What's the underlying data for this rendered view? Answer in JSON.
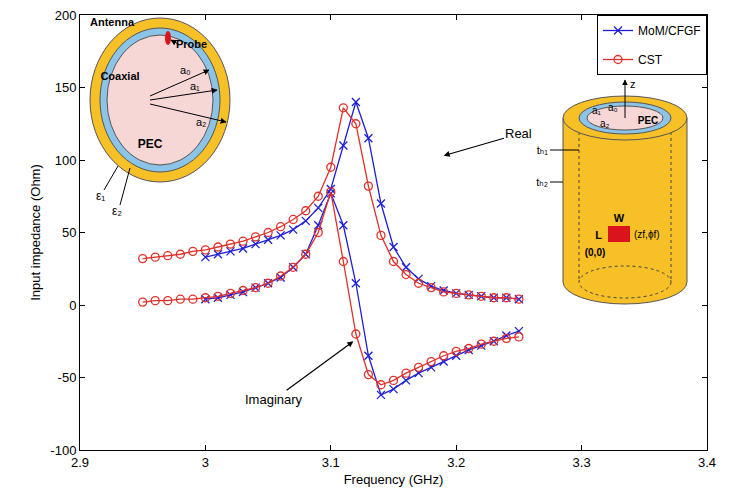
{
  "chart_data": {
    "type": "line",
    "x_label": "Frequency (GHz)",
    "y_label": "Input impedance (Ohm)",
    "xlim": [
      2.9,
      3.4
    ],
    "xticks": [
      2.9,
      3,
      3.1,
      3.2,
      3.3,
      3.4
    ],
    "ylim": [
      -100,
      200
    ],
    "yticks": [
      -100,
      -50,
      0,
      50,
      100,
      150,
      200
    ],
    "grid": false,
    "legend": "upper right",
    "series": [
      {
        "name": "MoM/CFGF",
        "color": "#1f1fd6",
        "marker": "x",
        "x": [
          3,
          3.01,
          3.02,
          3.03,
          3.04,
          3.05,
          3.06,
          3.07,
          3.08,
          3.09,
          3.1,
          3.11,
          3.12,
          3.13,
          3.14,
          3.15,
          3.16,
          3.17,
          3.18,
          3.19,
          3.2,
          3.21,
          3.22,
          3.23,
          3.24,
          3.25
        ],
        "real": [
          33,
          35,
          37,
          39,
          42,
          45,
          48,
          52,
          58,
          67,
          80,
          110,
          140,
          115,
          70,
          40,
          26,
          18,
          13,
          10,
          8,
          7,
          6,
          5,
          5,
          4
        ],
        "imaginary": [
          4,
          5,
          7,
          9,
          12,
          15,
          19,
          26,
          35,
          55,
          77,
          55,
          15,
          -35,
          -62,
          -58,
          -52,
          -47,
          -43,
          -39,
          -35,
          -31,
          -28,
          -25,
          -21,
          -18
        ]
      },
      {
        "name": "CST",
        "color": "#e0302a",
        "marker": "circle",
        "x": [
          2.95,
          2.96,
          2.97,
          2.98,
          2.99,
          3,
          3.01,
          3.02,
          3.03,
          3.04,
          3.05,
          3.06,
          3.07,
          3.08,
          3.09,
          3.1,
          3.11,
          3.12,
          3.13,
          3.14,
          3.15,
          3.16,
          3.17,
          3.18,
          3.19,
          3.2,
          3.21,
          3.22,
          3.23,
          3.24,
          3.25
        ],
        "real": [
          32,
          33,
          34,
          35,
          37,
          38,
          40,
          42,
          44,
          47,
          50,
          54,
          59,
          65,
          75,
          95,
          136,
          125,
          82,
          48,
          30,
          21,
          15,
          12,
          9,
          8,
          7,
          6,
          5,
          5,
          4
        ],
        "imaginary": [
          2,
          3,
          3,
          4,
          4,
          5,
          6,
          8,
          10,
          12,
          15,
          20,
          26,
          35,
          50,
          78,
          30,
          -20,
          -48,
          -55,
          -52,
          -47,
          -43,
          -39,
          -35,
          -32,
          -30,
          -27,
          -25,
          -23,
          -22
        ]
      }
    ],
    "annotations": [
      {
        "text": "Real"
      },
      {
        "text": "Imaginary"
      }
    ]
  },
  "insets": {
    "cross_section": {
      "antenna": "Antenna",
      "probe": "Probe",
      "coaxial": "Coaxial",
      "a0": "a₀",
      "a1": "a₁",
      "a2": "a₂",
      "pec": "PEC",
      "eps1": "ε₁",
      "eps2": "ε₂"
    },
    "cylinder": {
      "z": "z",
      "a1": "a₁",
      "a0": "a₀",
      "a2": "a₂",
      "pec": "PEC",
      "th1": "tₕ₁",
      "th2": "tₕ₂",
      "w": "W",
      "l": "L",
      "feed": "(zf,ϕf)",
      "origin": "(0,0)"
    }
  }
}
